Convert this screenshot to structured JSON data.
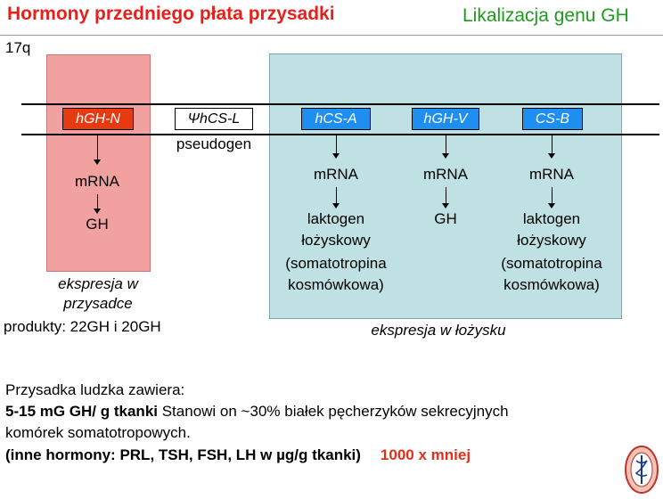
{
  "header": {
    "title": "Hormony przedniego płata przysadki",
    "subtitle": "Likalizacja genu GH"
  },
  "chromosome_label": "17q",
  "genes": {
    "hgh_n": "hGH-N",
    "psi_hcs_l": "ΨhCS-L",
    "hcs_a": "hCS-A",
    "hgh_v": "hGH-V",
    "cs_b": "CS-B"
  },
  "pseudogen_label": "pseudogen",
  "pituitary": {
    "mrna": "mRNA",
    "product": "GH",
    "caption_line1": "ekspresja w",
    "caption_line2": "przysadce",
    "products": "produkty: 22GH i 20GH"
  },
  "placenta": {
    "mrna": "mRNA",
    "hcs_a_product": [
      "laktogen",
      "łożyskowy",
      "(somatotropina",
      "kosmówkowa)"
    ],
    "hgh_v_product": "GH",
    "cs_b_product": [
      "laktogen",
      "łożyskowy",
      "(somatotropina",
      "kosmówkowa)"
    ],
    "caption": "ekspresja w łożysku"
  },
  "notes": {
    "line1": "Przysadka ludzka zawiera:",
    "line2_bold": "5-15 mG GH/ g tkanki",
    "line2_rest": " Stanowi on ~30% białek pęcherzyków sekrecyjnych",
    "line3": "komórek somatotropowych.",
    "line4_bold": "(inne hormony: PRL, TSH, FSH, LH w µg/g tkanki)",
    "line4_red": "1000 x mniej"
  },
  "colors": {
    "title": "#e8201c",
    "subtitle": "#1f9a1f",
    "pituitary_box": "#f2a1a1",
    "placenta_box": "#bfe1e3",
    "gene_red": "#e83a12",
    "gene_blue": "#1e8ff0"
  }
}
